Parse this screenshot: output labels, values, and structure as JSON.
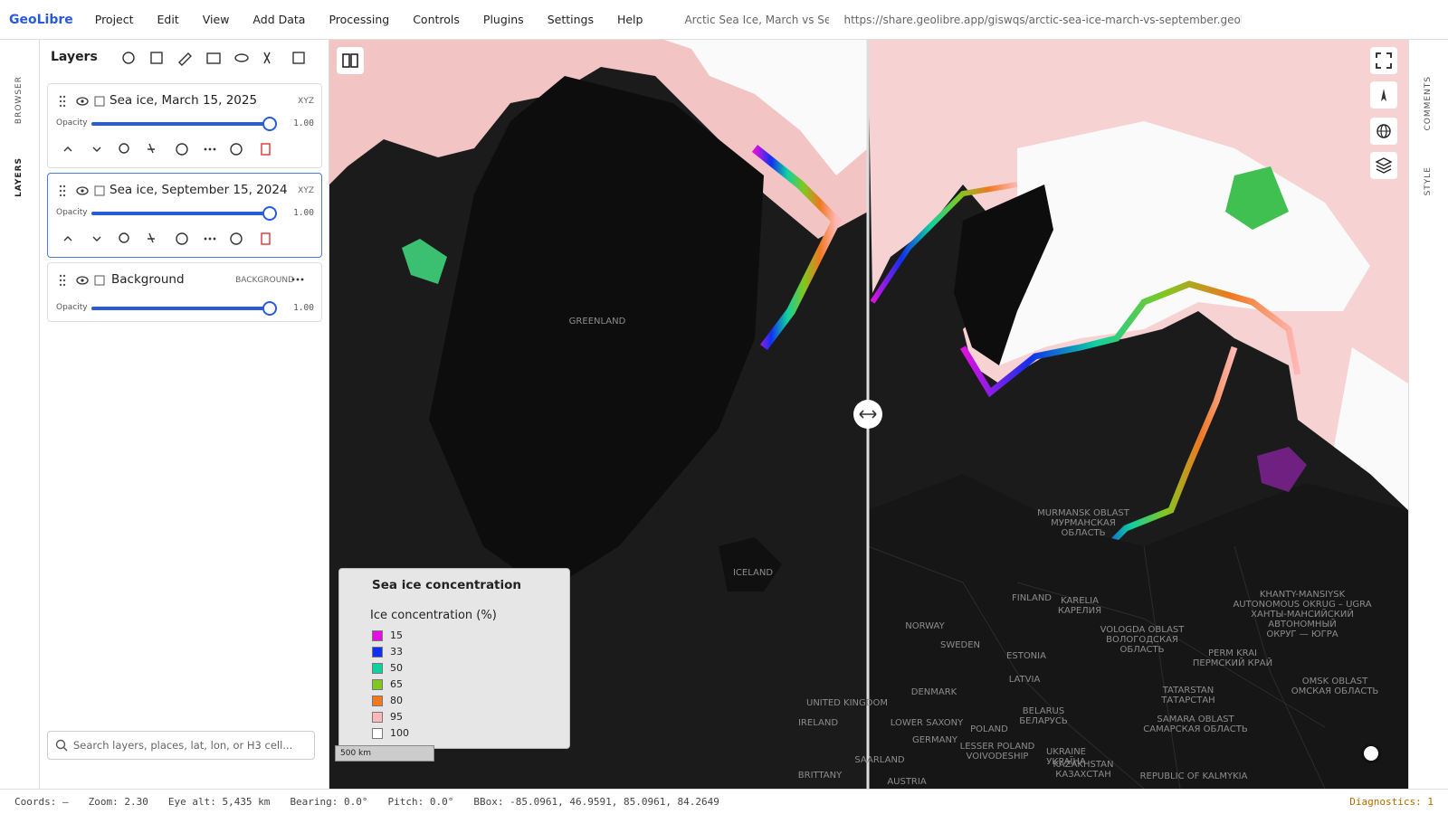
{
  "menu": {
    "brand": "GeoLibre",
    "items": [
      "Project",
      "Edit",
      "View",
      "Add Data",
      "Processing",
      "Controls",
      "Plugins",
      "Settings",
      "Help"
    ],
    "document_title": "Arctic Sea Ice, March vs Sept",
    "url": "https://share.geolibre.app/giswqs/arctic-sea-ice-march-vs-september.geolibre...."
  },
  "rails": {
    "left": [
      "BROWSER",
      "LAYERS"
    ],
    "right": [
      "COMMENTS",
      "STYLE"
    ]
  },
  "layers_panel": {
    "title": "Layers",
    "opacity_label": "Opacity",
    "layers": [
      {
        "name": "Sea ice, March 15, 2025",
        "kind": "XYZ",
        "opacity": "1.00"
      },
      {
        "name": "Sea ice, September 15, 2024",
        "kind": "XYZ",
        "opacity": "1.00"
      },
      {
        "name": "Background",
        "kind": "BACKGROUND",
        "opacity": "1.00"
      }
    ],
    "search_placeholder": "Search layers, places, lat, lon, or H3 cell..."
  },
  "map": {
    "labels": [
      [
        "GREENLAND"
      ],
      [
        "ICELAND"
      ],
      [
        "FINLAND"
      ],
      [
        "NORWAY"
      ],
      [
        "SWEDEN"
      ],
      [
        "ESTONIA"
      ],
      [
        "LATVIA"
      ],
      [
        "DENMARK"
      ],
      [
        "UNITED KINGDOM"
      ],
      [
        "IRELAND"
      ],
      [
        "BELARUS",
        "БЕЛАРУСЬ"
      ],
      [
        "POLAND"
      ],
      [
        "GERMANY"
      ],
      [
        "LOWER SAXONY"
      ],
      [
        "KARELIA",
        "КАРЕЛИЯ"
      ],
      [
        "MURMANSK OBLAST",
        "МУРМАНСКАЯ",
        "ОБЛАСТЬ"
      ],
      [
        "VOLOGDA OBLAST",
        "ВОЛОГОДСКАЯ",
        "ОБЛАСТЬ"
      ],
      [
        "PERM KRAI",
        "ПЕРМСКИЙ КРАЙ"
      ],
      [
        "TATARSTAN",
        "ТАТАРСТАН"
      ],
      [
        "SAMARA OBLAST",
        "САМАРСКАЯ ОБЛАСТЬ"
      ],
      [
        "KHANTY-MANSIYSK",
        "AUTONOMOUS OKRUG – UGRA",
        "ХАНТЫ-МАНСИЙСКИЙ",
        "АВТОНОМНЫЙ",
        "ОКРУГ — ЮГРА"
      ],
      [
        "OMSK OBLAST",
        "ОМСКАЯ ОБЛАСТЬ"
      ],
      [
        "KAZAKHSTAN",
        "КАЗАХСТАН"
      ],
      [
        "UKRAINE",
        "УКРАЇНА"
      ],
      [
        "REPUBLIC OF KALMYKIA"
      ],
      [
        "LESSER POLAND",
        "VOIVODESHIP"
      ],
      [
        "SAARLAND"
      ],
      [
        "BRITTANY"
      ],
      [
        "AUSTRIA"
      ]
    ],
    "legend": {
      "title": "Sea ice concentration",
      "layer": "Ice concentration (%)",
      "items": [
        {
          "label": "15",
          "color": "#e010e0"
        },
        {
          "label": "33",
          "color": "#1030f0"
        },
        {
          "label": "50",
          "color": "#10d0a0"
        },
        {
          "label": "65",
          "color": "#80c820"
        },
        {
          "label": "80",
          "color": "#f07820"
        },
        {
          "label": "95",
          "color": "#ffb8b8"
        },
        {
          "label": "100",
          "color": "#ffffff"
        }
      ]
    },
    "scale": "500 km"
  },
  "status": {
    "items": [
      "Coords: —",
      "Zoom: 2.30",
      "Eye alt: 5,435 km",
      "Bearing: 0.0°",
      "Pitch: 0.0°",
      "BBox: -85.0961, 46.9591, 85.0961, 84.2649"
    ],
    "diagnostics": "Diagnostics: 1"
  }
}
